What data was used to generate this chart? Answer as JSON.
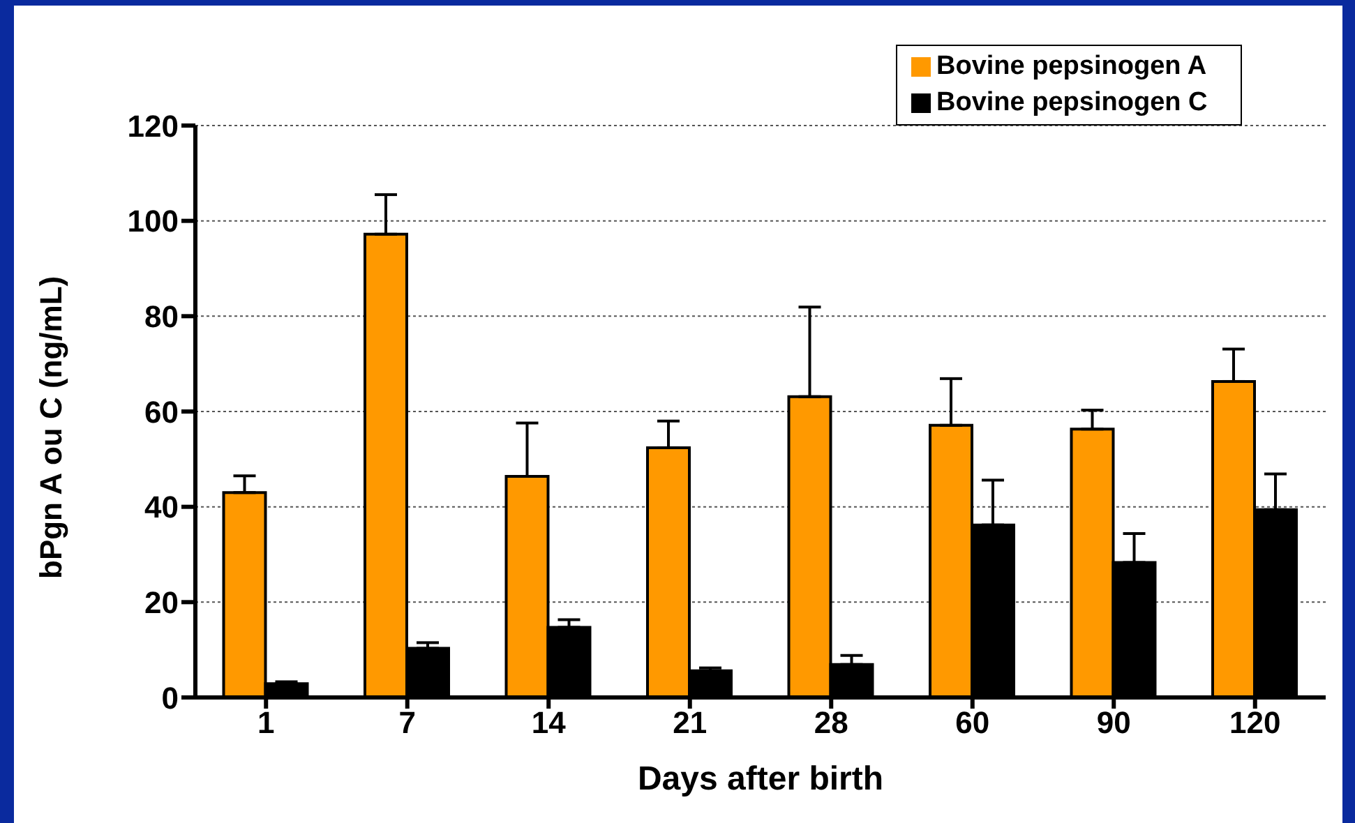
{
  "chart_data": {
    "type": "bar",
    "xlabel": "Days after birth",
    "ylabel": "bPgn A ou C (ng/mL)",
    "categories": [
      "1",
      "7",
      "14",
      "21",
      "28",
      "60",
      "90",
      "120"
    ],
    "series": [
      {
        "name": "Bovine pepsinogen A",
        "color": "#ff9900",
        "values": [
          43.0,
          97.2,
          46.4,
          52.4,
          63.1,
          57.1,
          56.3,
          66.3
        ],
        "errors": [
          [
            43.0,
            46.5
          ],
          [
            97.2,
            105.5
          ],
          [
            46.4,
            57.6
          ],
          [
            52.4,
            58.0
          ],
          [
            63.1,
            81.9
          ],
          [
            57.1,
            66.9
          ],
          [
            56.3,
            60.3
          ],
          [
            66.3,
            73.1
          ]
        ]
      },
      {
        "name": "Bovine pepsinogen C",
        "color": "#000000",
        "values": [
          2.9,
          10.3,
          14.7,
          5.6,
          6.9,
          36.2,
          28.3,
          39.4
        ],
        "errors": [
          [
            2.9,
            3.3
          ],
          [
            10.3,
            11.5
          ],
          [
            14.7,
            16.3
          ],
          [
            5.6,
            6.2
          ],
          [
            6.9,
            8.8
          ],
          [
            36.2,
            45.6
          ],
          [
            28.3,
            34.4
          ],
          [
            39.4,
            46.9
          ]
        ]
      }
    ],
    "ylim": [
      0,
      120
    ],
    "yticks": [
      0,
      20,
      40,
      60,
      80,
      100,
      120
    ],
    "grid": "y",
    "legend": "top right"
  }
}
